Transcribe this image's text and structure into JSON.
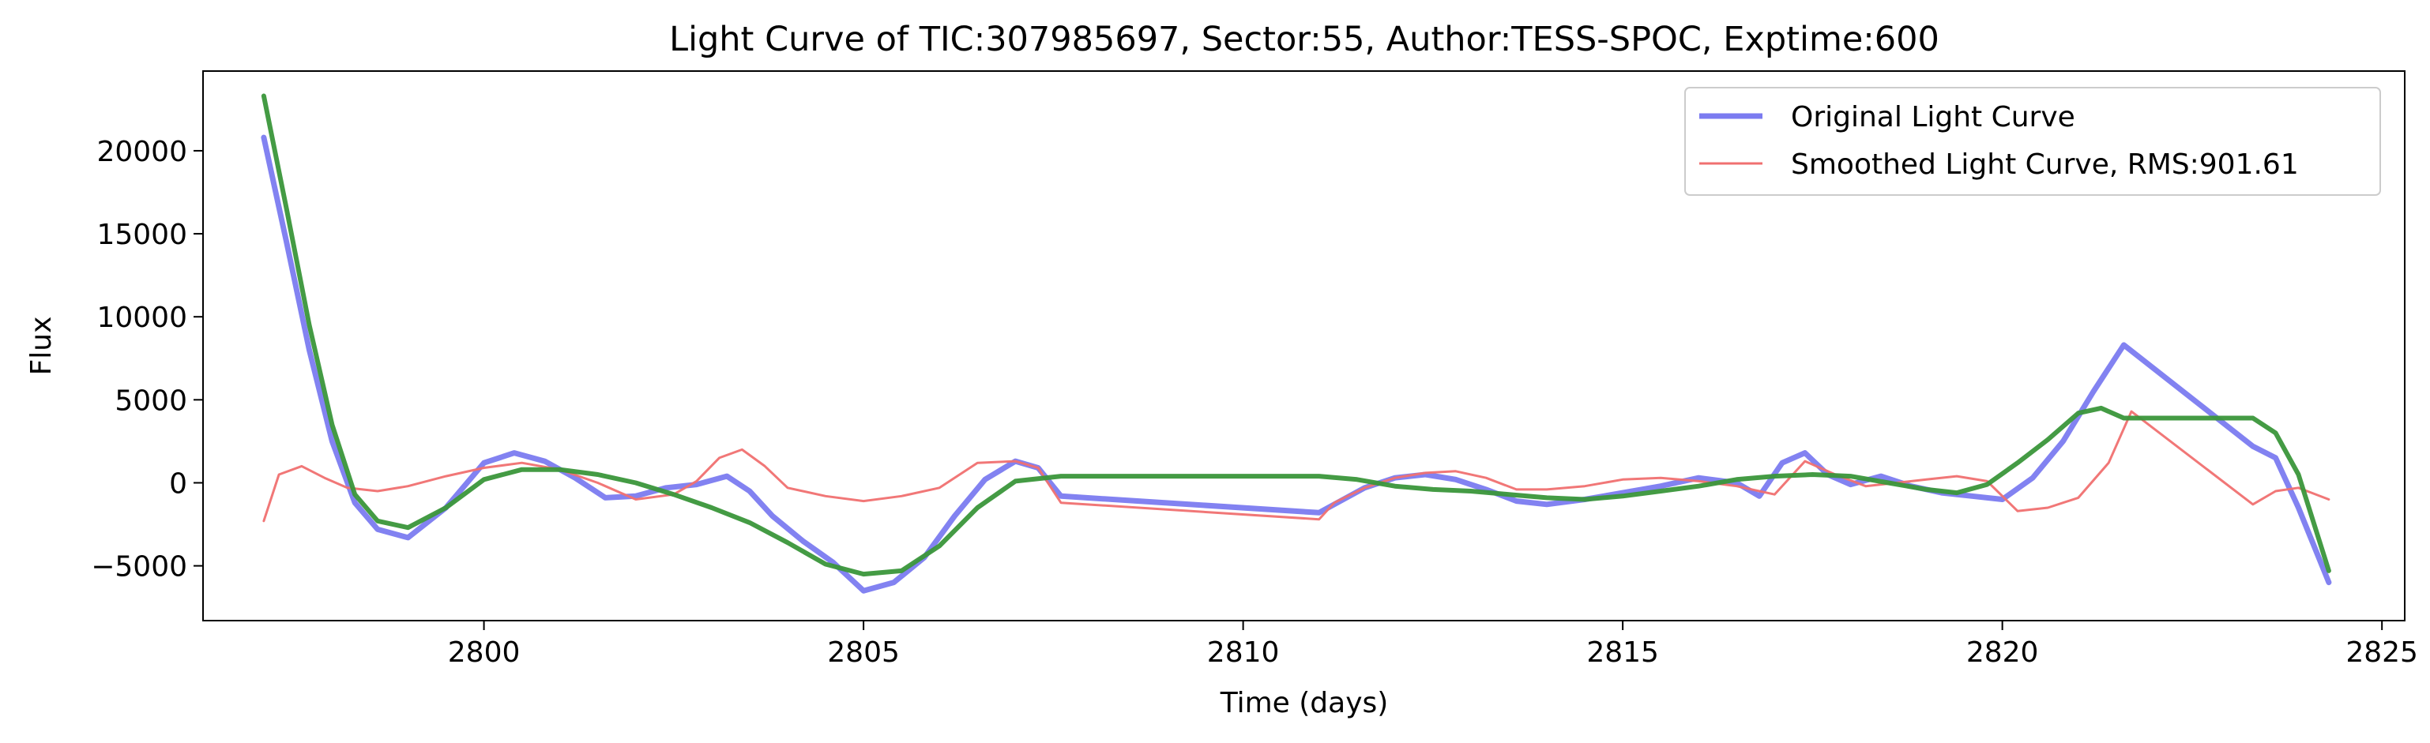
{
  "chart_data": {
    "type": "line",
    "title": "Light Curve of TIC:307985697, Sector:55, Author:TESS-SPOC, Exptime:600",
    "xlabel": "Time (days)",
    "ylabel": "Flux",
    "xlim": [
      2796.3,
      2825.3
    ],
    "ylim": [
      -8300,
      24800
    ],
    "xticks": [
      2800,
      2805,
      2810,
      2815,
      2820,
      2825
    ],
    "yticks": [
      -5000,
      0,
      5000,
      10000,
      15000,
      20000
    ],
    "xtick_labels": [
      "2800",
      "2805",
      "2810",
      "2815",
      "2820",
      "2825"
    ],
    "ytick_labels": [
      "−5000",
      "0",
      "5000",
      "10000",
      "15000",
      "20000"
    ],
    "grid": false,
    "legend_position": "top-right",
    "series": [
      {
        "name": "Original Light Curve",
        "color": "#7b7bf0",
        "x": [
          2797.1,
          2797.4,
          2797.7,
          2798.0,
          2798.3,
          2798.6,
          2799.0,
          2799.5,
          2800.0,
          2800.4,
          2800.8,
          2801.2,
          2801.6,
          2802.0,
          2802.4,
          2802.8,
          2803.2,
          2803.5,
          2803.8,
          2804.2,
          2804.6,
          2805.0,
          2805.4,
          2805.8,
          2806.2,
          2806.6,
          2807.0,
          2807.3,
          2807.6,
          2811.0,
          2811.2,
          2811.6,
          2812.0,
          2812.4,
          2812.8,
          2813.2,
          2813.6,
          2814.0,
          2814.5,
          2815.0,
          2815.5,
          2816.0,
          2816.5,
          2816.8,
          2817.1,
          2817.4,
          2817.7,
          2818.0,
          2818.4,
          2818.8,
          2819.2,
          2819.6,
          2820.0,
          2820.4,
          2820.8,
          2821.2,
          2821.6,
          2823.3,
          2823.6,
          2823.9,
          2824.3
        ],
        "y": [
          20800,
          14500,
          8000,
          2500,
          -1200,
          -2800,
          -3300,
          -1500,
          1200,
          1800,
          1300,
          300,
          -900,
          -800,
          -300,
          -100,
          400,
          -500,
          -2000,
          -3500,
          -4800,
          -6500,
          -6000,
          -4500,
          -2000,
          200,
          1300,
          900,
          -800,
          -1800,
          -1300,
          -300,
          300,
          500,
          200,
          -400,
          -1100,
          -1300,
          -1000,
          -600,
          -200,
          300,
          0,
          -800,
          1200,
          1800,
          500,
          -100,
          400,
          -200,
          -600,
          -800,
          -1000,
          300,
          2500,
          5500,
          8300,
          2200,
          1500,
          -1500,
          -6000
        ]
      },
      {
        "name": "Smoothed Light Curve, RMS:901.61",
        "color": "#f07070",
        "x": [
          2797.1,
          2797.3,
          2797.6,
          2797.9,
          2798.2,
          2798.6,
          2799.0,
          2799.5,
          2800.0,
          2800.5,
          2801.0,
          2801.5,
          2802.0,
          2802.5,
          2802.8,
          2803.1,
          2803.4,
          2803.7,
          2804.0,
          2804.5,
          2805.0,
          2805.5,
          2806.0,
          2806.5,
          2807.0,
          2807.3,
          2807.6,
          2811.0,
          2811.2,
          2811.6,
          2812.0,
          2812.4,
          2812.8,
          2813.2,
          2813.6,
          2814.0,
          2814.5,
          2815.0,
          2815.5,
          2816.0,
          2816.5,
          2817.0,
          2817.4,
          2817.8,
          2818.2,
          2818.6,
          2819.0,
          2819.4,
          2819.8,
          2820.2,
          2820.6,
          2821.0,
          2821.4,
          2821.7,
          2823.3,
          2823.6,
          2823.9,
          2824.3
        ],
        "y": [
          -2300,
          500,
          1000,
          300,
          -300,
          -500,
          -200,
          400,
          900,
          1200,
          800,
          0,
          -1000,
          -700,
          100,
          1500,
          2000,
          1000,
          -300,
          -800,
          -1100,
          -800,
          -300,
          1200,
          1300,
          900,
          -1200,
          -2200,
          -1200,
          -300,
          300,
          600,
          700,
          300,
          -400,
          -400,
          -200,
          200,
          300,
          100,
          -200,
          -700,
          1300,
          500,
          -200,
          0,
          200,
          400,
          100,
          -1700,
          -1500,
          -900,
          1200,
          4300,
          -1300,
          -500,
          -300,
          -1000
        ]
      },
      {
        "name": "",
        "color": "#3a963a",
        "x": [
          2797.1,
          2797.4,
          2797.7,
          2798.0,
          2798.3,
          2798.6,
          2799.0,
          2799.5,
          2800.0,
          2800.5,
          2801.0,
          2801.5,
          2802.0,
          2802.5,
          2803.0,
          2803.5,
          2804.0,
          2804.5,
          2805.0,
          2805.5,
          2806.0,
          2806.5,
          2807.0,
          2807.6,
          2811.0,
          2811.5,
          2812.0,
          2812.5,
          2813.0,
          2813.5,
          2814.0,
          2814.5,
          2815.0,
          2815.5,
          2816.0,
          2816.5,
          2817.0,
          2817.5,
          2818.0,
          2818.5,
          2819.0,
          2819.4,
          2819.8,
          2820.2,
          2820.6,
          2821.0,
          2821.3,
          2821.6,
          2823.3,
          2823.6,
          2823.9,
          2824.3
        ],
        "y": [
          23300,
          16500,
          9500,
          3500,
          -700,
          -2300,
          -2700,
          -1500,
          200,
          800,
          800,
          500,
          0,
          -700,
          -1500,
          -2400,
          -3600,
          -4900,
          -5500,
          -5300,
          -3800,
          -1500,
          100,
          400,
          400,
          200,
          -200,
          -400,
          -500,
          -700,
          -900,
          -1000,
          -800,
          -500,
          -200,
          200,
          400,
          500,
          400,
          0,
          -400,
          -600,
          -100,
          1200,
          2600,
          4200,
          4500,
          3900,
          3900,
          3000,
          500,
          -5300
        ]
      }
    ],
    "legend": [
      {
        "label": "Original Light Curve",
        "color": "#7b7bf0",
        "width": 7
      },
      {
        "label": "Smoothed Light Curve, RMS:901.61",
        "color": "#f07070",
        "width": 3
      }
    ]
  }
}
